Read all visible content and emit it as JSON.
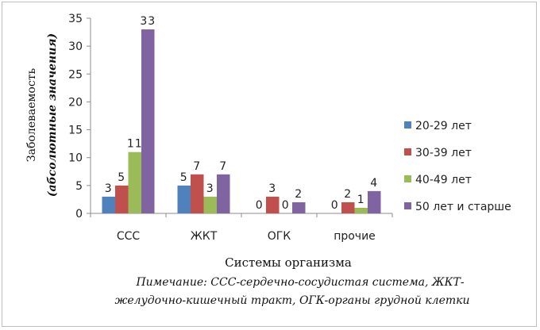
{
  "chart_data": {
    "type": "bar",
    "categories": [
      "ССС",
      "ЖКТ",
      "ОГК",
      "прочие"
    ],
    "series": [
      {
        "name": "20-29 лет",
        "color": "#4f81bd",
        "values": [
          3,
          5,
          0,
          0
        ]
      },
      {
        "name": "30-39 лет",
        "color": "#c0504d",
        "values": [
          5,
          7,
          3,
          2
        ]
      },
      {
        "name": "40-49 лет",
        "color": "#9bbb59",
        "values": [
          11,
          3,
          0,
          1
        ]
      },
      {
        "name": "50 лет и старше",
        "color": "#8064a2",
        "values": [
          33,
          7,
          2,
          4
        ]
      }
    ],
    "data_labels": [
      [
        "3",
        "5",
        "11",
        "33"
      ],
      [
        "5",
        "7",
        "3",
        "7"
      ],
      [
        "0",
        "3",
        "0",
        "2"
      ],
      [
        "0",
        "2",
        "1",
        "4"
      ]
    ],
    "ylim": [
      0,
      35
    ],
    "yticks": [
      0,
      5,
      10,
      15,
      20,
      25,
      30,
      35
    ],
    "xlabel": "Системы организма",
    "ylabel": "Заболеваемость",
    "ylabel2": "(абсолютные значения)",
    "legend_position": "right",
    "grid": false
  },
  "note": {
    "line1": "Пимечание:  ССС-сердечно-сосудистая система, ЖКТ-",
    "line2": "желудочно-кишечный тракт,  ОГК-органы  грудной клетки"
  }
}
